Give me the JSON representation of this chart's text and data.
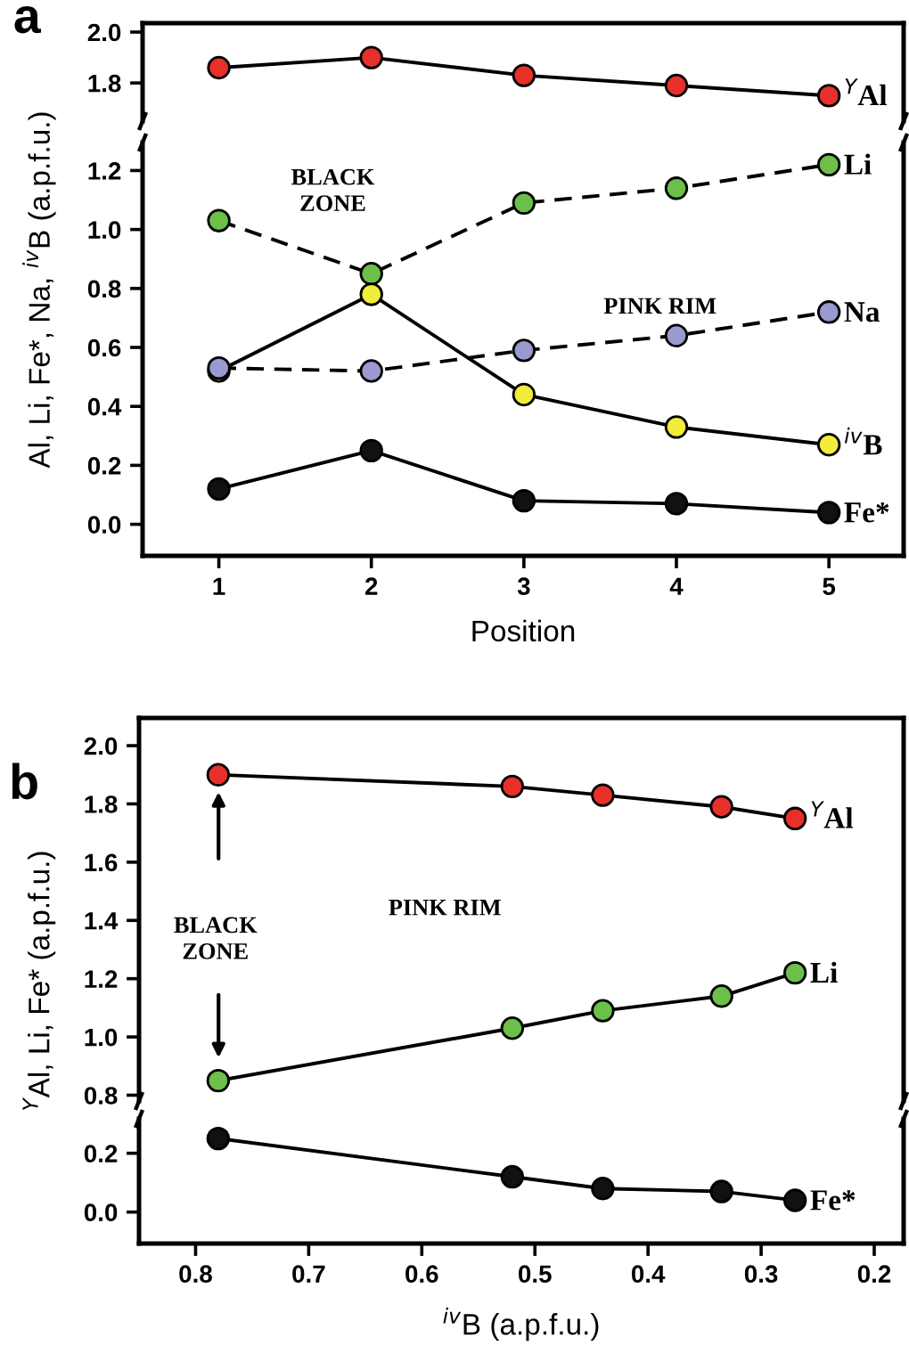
{
  "chart_data": [
    {
      "type": "line",
      "title": "a",
      "x": [
        1,
        2,
        3,
        4,
        5
      ],
      "xlim": [
        0.5,
        5.49
      ],
      "ylim": [
        1.65,
        2.035
      ],
      "yticks": [
        {
          "value": 1.8,
          "label": "1.8"
        },
        {
          "value": 2.0,
          "label": "2.0"
        }
      ],
      "tick_labels": "y",
      "marker": "circle",
      "grid": false,
      "legend": false,
      "series": [
        {
          "name": "$^{Y}$Al",
          "color": "#e8302a",
          "line_style": "solid",
          "values": [
            1.86,
            1.9,
            1.83,
            1.79,
            1.75
          ]
        }
      ]
    },
    {
      "type": "line",
      "x": [
        1,
        2,
        3,
        4,
        5
      ],
      "xlim": [
        0.5,
        5.49
      ],
      "xticks": [
        1,
        2,
        3,
        4,
        5
      ],
      "ylim": [
        -0.107,
        1.295
      ],
      "yticks": [
        {
          "value": 0,
          "label": "0.0"
        },
        0.2,
        0.4,
        0.6,
        0.8,
        {
          "value": 1.0,
          "label": "1.0"
        },
        1.2
      ],
      "xlabel": "Position",
      "ylabel": "Al, Li, Fe*, Na, $^{iv}$B (a.p.f.u.)",
      "marker": "circle",
      "grid": false,
      "legend": false,
      "annotations": [
        "BLACK\nZONE",
        "PINK RIM"
      ],
      "series": [
        {
          "name": "Li",
          "color": "#6cc04a",
          "line_style": "dashed",
          "values": [
            1.03,
            0.85,
            1.09,
            1.14,
            1.22
          ]
        },
        {
          "name": "$^{iv}$B",
          "color": "#f2ec3a",
          "line_style": "solid",
          "values": [
            0.52,
            0.78,
            0.44,
            0.33,
            0.27
          ]
        },
        {
          "name": "Na",
          "color": "#9a9ad0",
          "line_style": "dashed",
          "values": [
            0.53,
            0.52,
            0.59,
            0.64,
            0.72
          ]
        },
        {
          "name": "Fe*",
          "color": "#111111",
          "line_style": "solid",
          "values": [
            0.12,
            0.25,
            0.08,
            0.07,
            0.04
          ]
        }
      ]
    },
    {
      "type": "line",
      "title": "b",
      "x": [
        0.78,
        0.52,
        0.44,
        0.335,
        0.27
      ],
      "xlim": [
        0.85,
        0.174
      ],
      "ylim": [
        0.78,
        2.095
      ],
      "yticks": [
        {
          "value": 0.8,
          "label": "0.8"
        },
        {
          "value": 1.0,
          "label": "1.0"
        },
        1.2,
        1.4,
        1.6,
        1.8,
        {
          "value": 2.0,
          "label": "2.0"
        }
      ],
      "tick_labels": "y",
      "marker": "circle",
      "grid": false,
      "legend": false,
      "annotations": [
        "BLACK\nZONE",
        "PINK RIM"
      ],
      "series": [
        {
          "name": "$^{Y}$Al",
          "color": "#e8302a",
          "line_style": "solid",
          "values": [
            1.9,
            1.86,
            1.83,
            1.79,
            1.75
          ]
        },
        {
          "name": "Li",
          "color": "#6cc04a",
          "line_style": "solid",
          "values": [
            0.85,
            1.03,
            1.09,
            1.14,
            1.22
          ]
        }
      ]
    },
    {
      "type": "line",
      "x": [
        0.78,
        0.52,
        0.44,
        0.335,
        0.27
      ],
      "xlim": [
        0.85,
        0.174
      ],
      "xticks": [
        0.8,
        0.7,
        0.6,
        0.5,
        0.4,
        0.3,
        0.2
      ],
      "ylim": [
        -0.107,
        0.317
      ],
      "yticks": [
        {
          "value": 0,
          "label": "0.0"
        },
        0.2
      ],
      "xlabel": "$^{iv}$B (a.p.f.u.)",
      "ylabel": "$^{Y}$Al, Li, Fe* (a.p.f.u.)",
      "marker": "circle",
      "grid": false,
      "legend": false,
      "series": [
        {
          "name": "Fe*",
          "color": "#111111",
          "line_style": "solid",
          "values": [
            0.25,
            0.12,
            0.08,
            0.07,
            0.04
          ]
        }
      ]
    }
  ]
}
